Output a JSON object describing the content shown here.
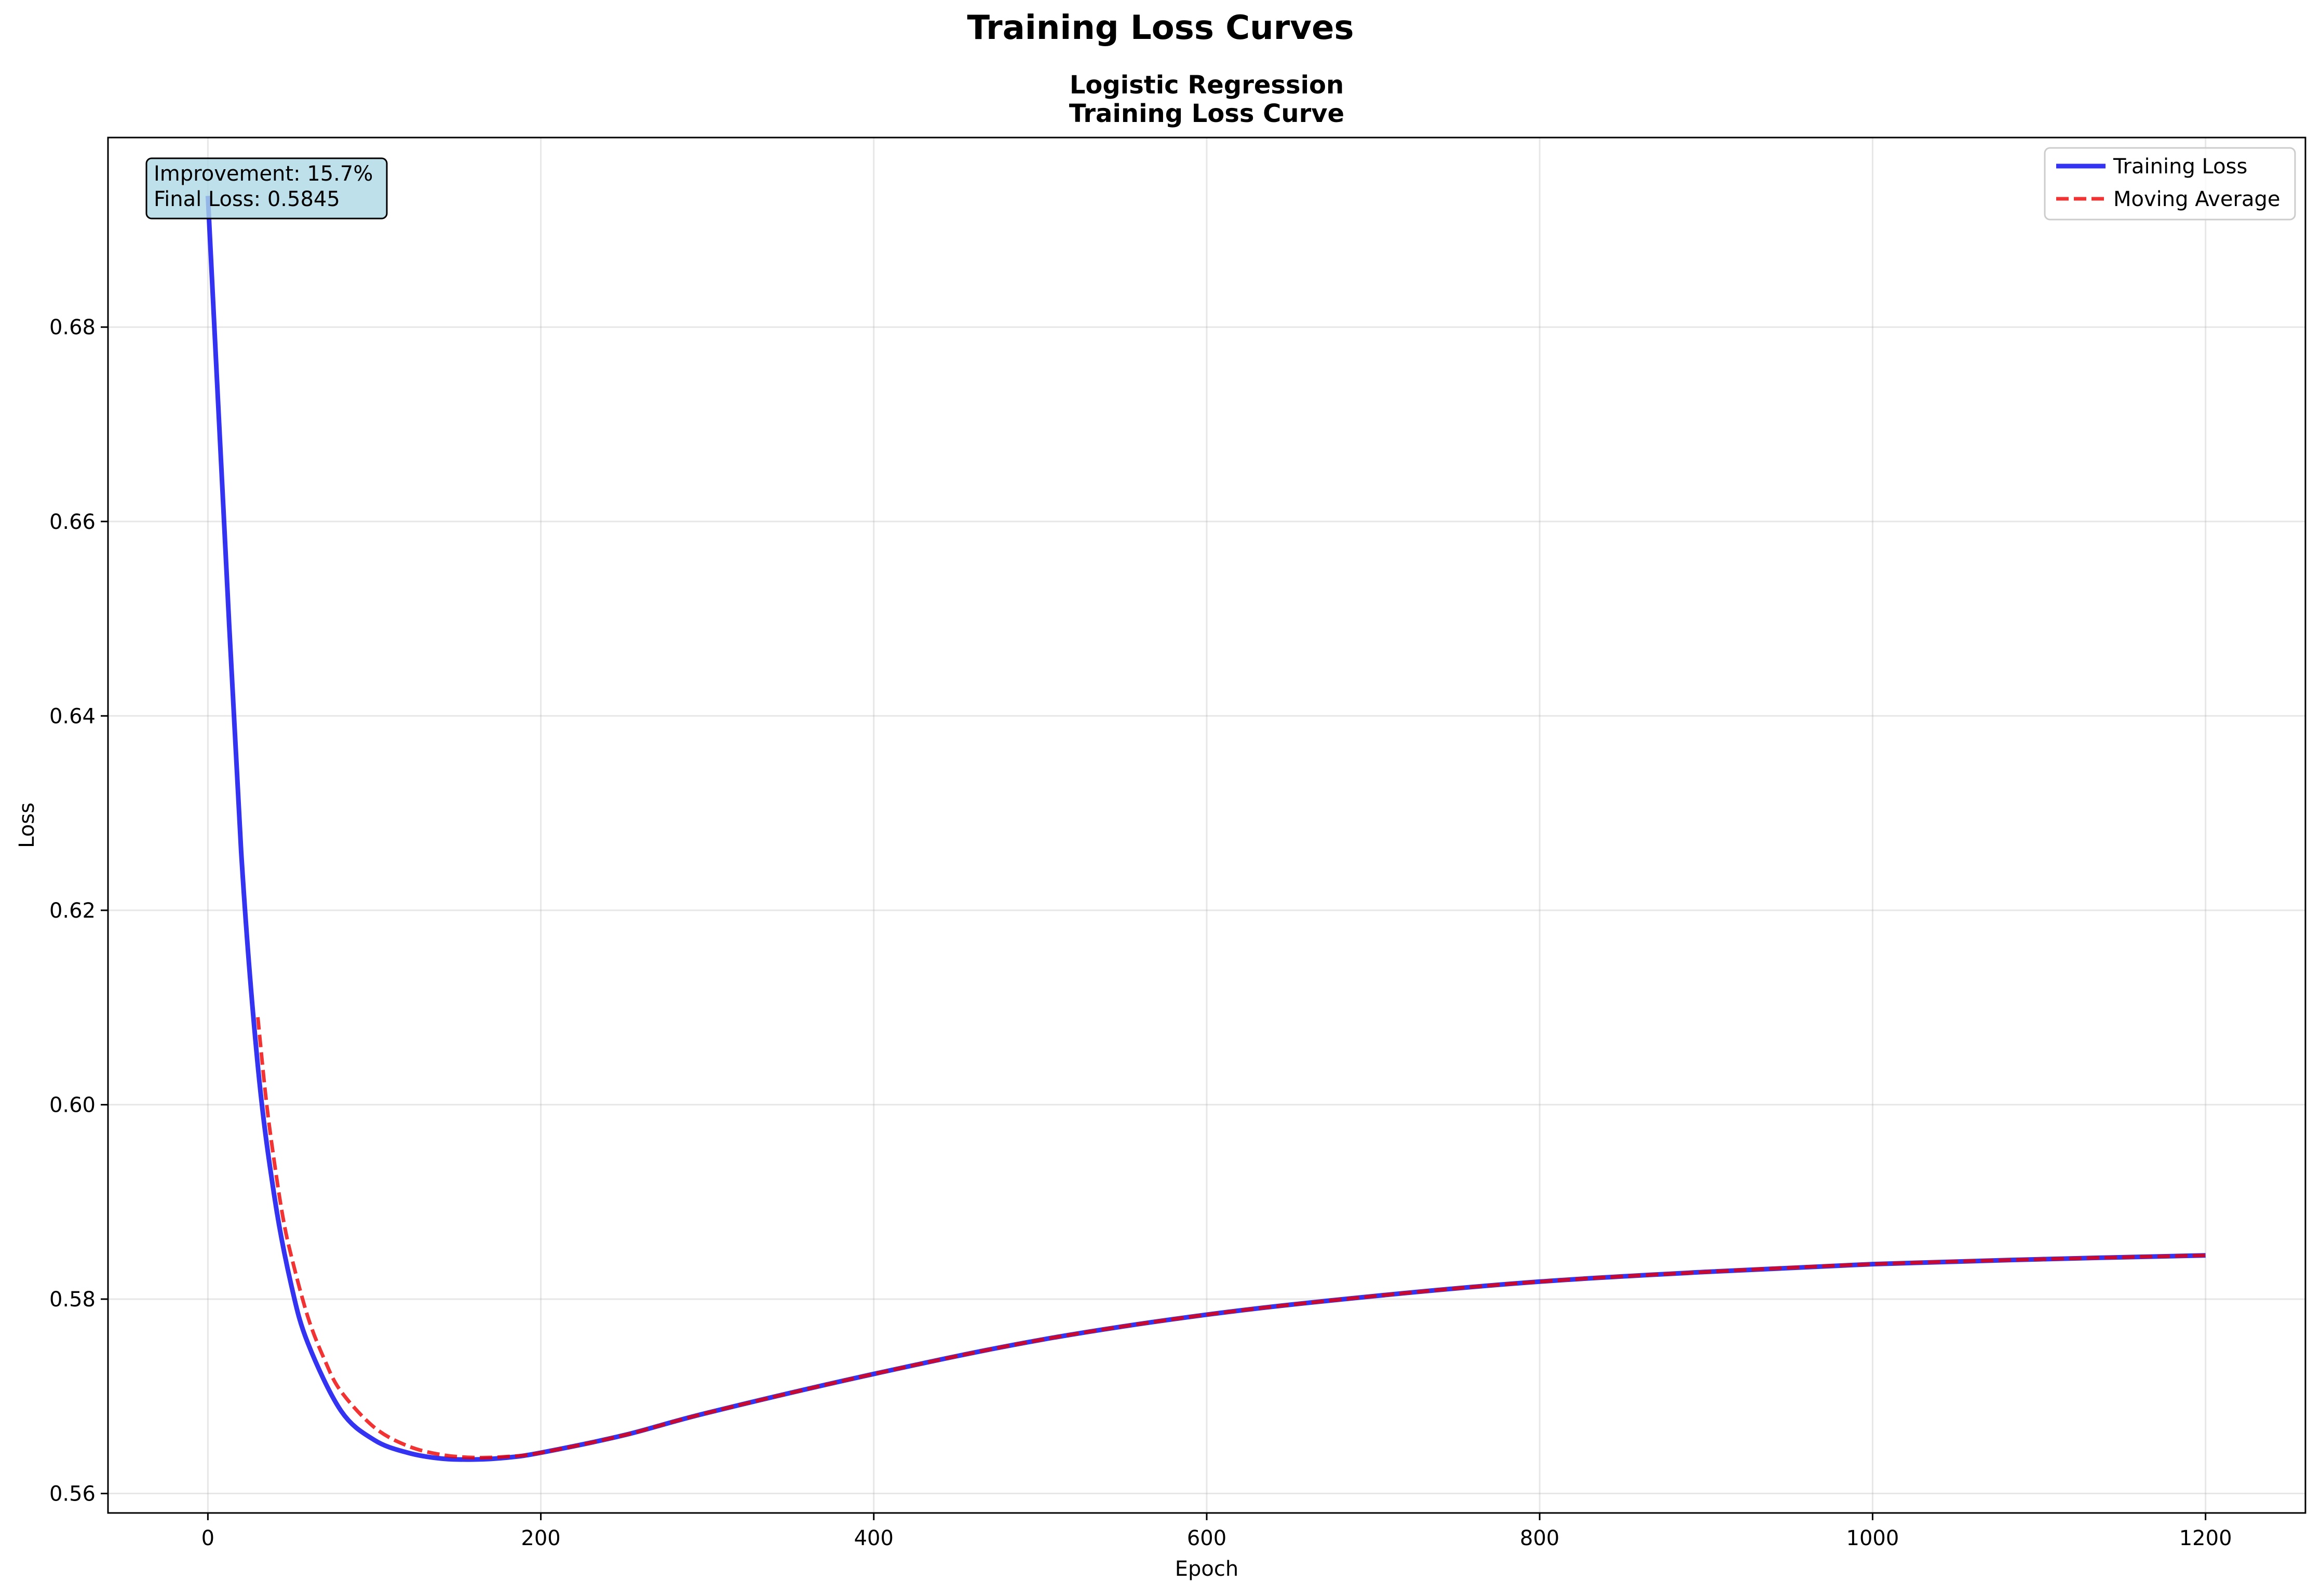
{
  "figure": {
    "suptitle": "Training Loss Curves"
  },
  "chart_data": {
    "type": "line",
    "title_line1": "Logistic Regression",
    "title_line2": "Training Loss Curve",
    "xlabel": "Epoch",
    "ylabel": "Loss",
    "xlim": [
      -60,
      1260
    ],
    "ylim": [
      0.558,
      0.6995
    ],
    "xticks": [
      0,
      200,
      400,
      600,
      800,
      1000,
      1200
    ],
    "xtick_labels": [
      "0",
      "200",
      "400",
      "600",
      "800",
      "1000",
      "1200"
    ],
    "yticks": [
      0.56,
      0.58,
      0.6,
      0.62,
      0.64,
      0.66,
      0.68
    ],
    "ytick_labels": [
      "0.56",
      "0.58",
      "0.60",
      "0.62",
      "0.64",
      "0.66",
      "0.68"
    ],
    "grid": true,
    "legend_position": "top-right",
    "annotation": {
      "line1": "Improvement: 15.7%",
      "line2": "Final Loss: 0.5845",
      "background": "#add8e6"
    },
    "series": [
      {
        "name": "Training Loss",
        "color": "#0000ee",
        "style": "solid",
        "x": [
          0,
          10,
          20,
          30,
          40,
          50,
          60,
          80,
          100,
          120,
          140,
          160,
          180,
          200,
          250,
          300,
          400,
          500,
          600,
          700,
          800,
          900,
          1000,
          1100,
          1200
        ],
        "y": [
          0.6935,
          0.659,
          0.626,
          0.604,
          0.5905,
          0.5815,
          0.5755,
          0.5685,
          0.5655,
          0.5642,
          0.5636,
          0.5635,
          0.5637,
          0.5642,
          0.566,
          0.5683,
          0.5723,
          0.5758,
          0.5784,
          0.5803,
          0.5818,
          0.5828,
          0.5836,
          0.5841,
          0.5845
        ]
      },
      {
        "name": "Moving Average",
        "color": "#ee0000",
        "style": "dashed",
        "x": [
          30,
          35,
          40,
          45,
          50,
          60,
          70,
          80,
          100,
          120,
          140,
          160,
          180,
          200,
          250,
          300,
          400,
          500,
          600,
          700,
          800,
          900,
          1000,
          1100,
          1200
        ],
        "y": [
          0.609,
          0.6005,
          0.594,
          0.5885,
          0.5845,
          0.5782,
          0.5738,
          0.5705,
          0.5668,
          0.5649,
          0.564,
          0.5637,
          0.5638,
          0.5642,
          0.566,
          0.5683,
          0.5723,
          0.5758,
          0.5784,
          0.5803,
          0.5818,
          0.5828,
          0.5836,
          0.5841,
          0.5845
        ]
      }
    ]
  }
}
